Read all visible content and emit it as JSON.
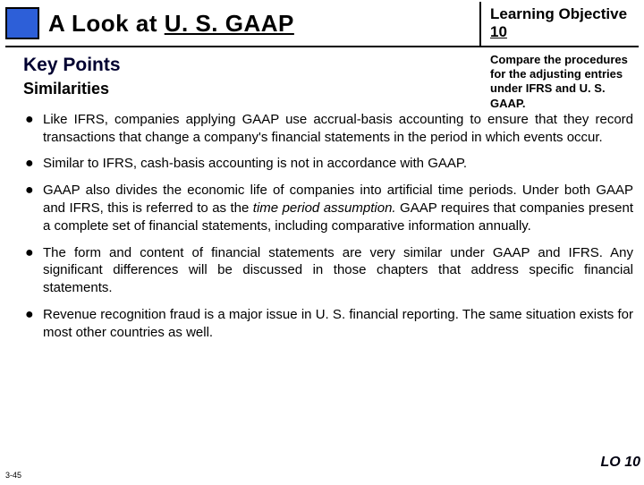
{
  "header": {
    "title_prefix": "A Look at ",
    "title_under": "U. S. GAAP",
    "lo_label": "Learning Objective ",
    "lo_num": "10"
  },
  "sidebar": {
    "compare_text": "Compare the procedures for the adjusting entries under IFRS and U. S. GAAP."
  },
  "kp": {
    "heading": "Key Points",
    "subhead": "Similarities"
  },
  "bullets": [
    "Like IFRS, companies applying GAAP use accrual-basis accounting to ensure that they record transactions that change a company's financial statements in the period in which events occur.",
    "Similar to IFRS, cash-basis accounting is not in accordance with GAAP.",
    "GAAP also divides the economic life of companies into artificial time periods. Under both GAAP and IFRS, this is referred to as the ",
    " GAAP requires that companies present a complete set of financial statements, including comparative information annually.",
    "The form and content of financial statements are very similar under GAAP and IFRS. Any significant differences will be discussed in those chapters that address specific financial statements.",
    "Revenue recognition fraud is a major issue in U. S. financial reporting. The same situation exists for most other countries as well."
  ],
  "italic_phrase": "time period assumption.",
  "footer": {
    "slide": "3-45",
    "lo": "LO 10"
  },
  "colors": {
    "blue_box": "#2d5fd8",
    "text": "#000000",
    "bg": "#ffffff"
  }
}
